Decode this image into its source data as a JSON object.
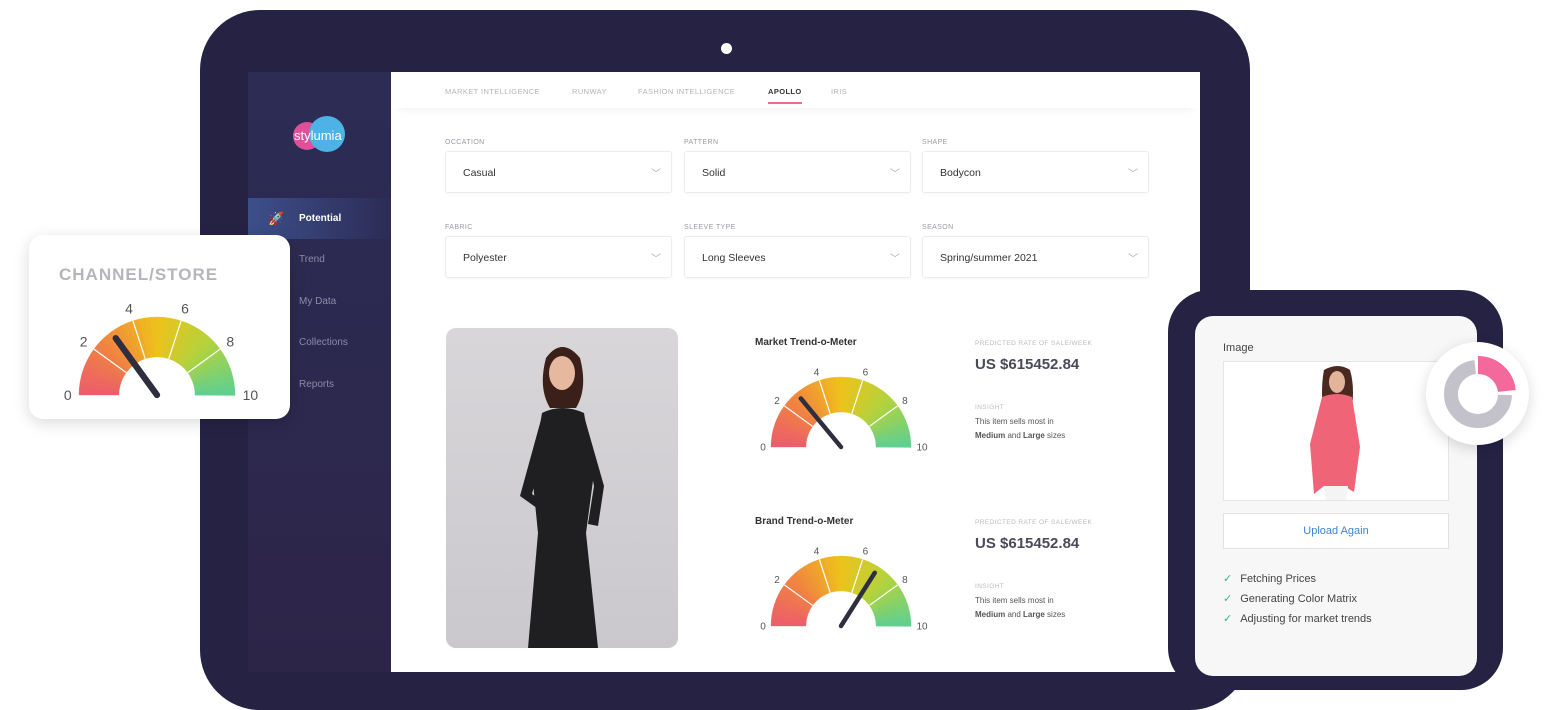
{
  "sidebar": {
    "logo": "stylumia",
    "items": [
      {
        "label": "Potential",
        "icon": "rocket-icon",
        "active": true
      },
      {
        "label": "Trend"
      },
      {
        "label": "My Data"
      },
      {
        "label": "Collections"
      },
      {
        "label": "Reports"
      }
    ]
  },
  "tabs": [
    {
      "label": "MARKET INTELLIGENCE"
    },
    {
      "label": "RUNWAY"
    },
    {
      "label": "FASHION INTELLIGENCE"
    },
    {
      "label": "APOLLO",
      "active": true
    },
    {
      "label": "IRIS"
    }
  ],
  "filters": [
    {
      "label": "OCCATION",
      "value": "Casual"
    },
    {
      "label": "PATTERN",
      "value": "Solid"
    },
    {
      "label": "SHAPE",
      "value": "Bodycon"
    },
    {
      "label": "FABRIC",
      "value": "Polyester"
    },
    {
      "label": "SLEEVE TYPE",
      "value": "Long Sleeves"
    },
    {
      "label": "SEASON",
      "value": "Spring/summer 2021"
    }
  ],
  "meters": [
    {
      "title": "Market Trend-o-Meter",
      "value": 2.8,
      "predicted_label": "PREDICTED RATE OF SALE/WEEK",
      "price": "US $615452.84",
      "insight_label": "INSIGHT",
      "insight_pre": "This item sells most in",
      "insight_b1": "Medium",
      "insight_and": " and ",
      "insight_b2": "Large",
      "insight_post": " sizes"
    },
    {
      "title": "Brand Trend-o-Meter",
      "value": 6.8,
      "predicted_label": "PREDICTED RATE OF SALE/WEEK",
      "price": "US $615452.84",
      "insight_label": "INSIGHT",
      "insight_pre": "This item sells most in",
      "insight_b1": "Medium",
      "insight_and": " and ",
      "insight_b2": "Large",
      "insight_post": " sizes"
    }
  ],
  "channel_card": {
    "title": "CHANNEL/STORE",
    "value": 3.0
  },
  "gauge_ticks": [
    "0",
    "2",
    "4",
    "6",
    "8",
    "10"
  ],
  "gauge_colors": [
    "#ec5c6c",
    "#f0853f",
    "#eec21a",
    "#b2d33e",
    "#5ccf93"
  ],
  "phone": {
    "image_label": "Image",
    "upload_label": "Upload Again",
    "checks": [
      "Fetching Prices",
      "Generating Color Matrix",
      "Adjusting for market trends"
    ]
  },
  "donut": {
    "highlight_fraction": 0.25,
    "colors": {
      "highlight": "#f3699b",
      "rest": "#c3c2cb"
    }
  }
}
